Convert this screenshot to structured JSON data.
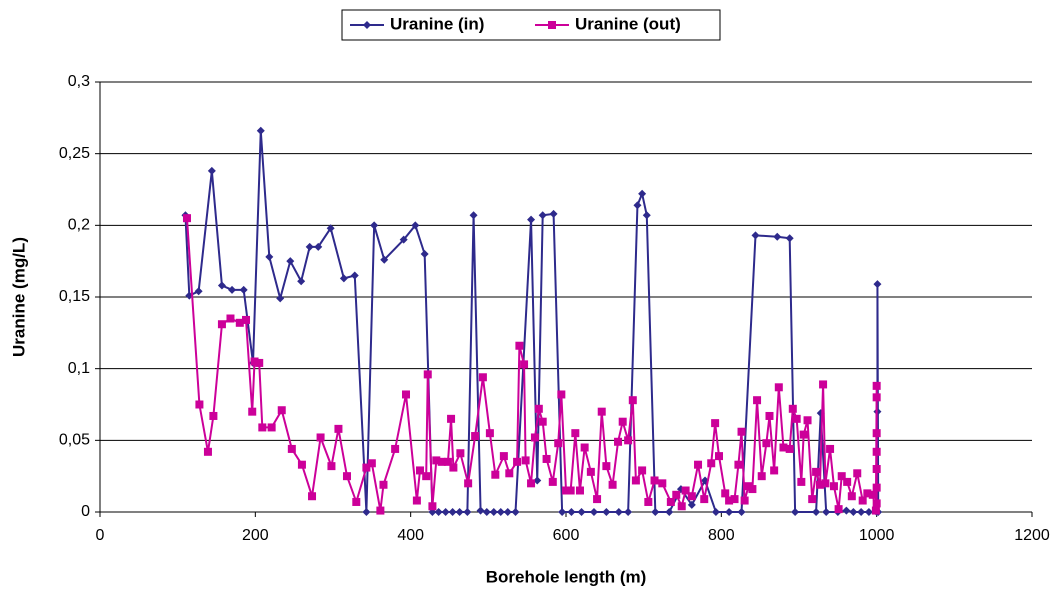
{
  "chart_data": {
    "type": "line",
    "x_label": "Borehole length (m)",
    "y_label": "Uranine (mg/L)",
    "xlim": [
      0,
      1200
    ],
    "xticks": [
      0,
      200,
      400,
      600,
      800,
      1000,
      1200
    ],
    "ylim": [
      0,
      0.3
    ],
    "yticks": [
      0,
      {
        "value": 0.05,
        "label": "0,05"
      },
      {
        "value": 0.1,
        "label": "0,1"
      },
      {
        "value": 0.15,
        "label": "0,15"
      },
      {
        "value": 0.2,
        "label": "0,2"
      },
      {
        "value": 0.25,
        "label": "0,25"
      },
      {
        "value": 0.3,
        "label": "0,3"
      }
    ],
    "grid": true,
    "legend": "top",
    "series": [
      {
        "name": "Uranine (in)",
        "color": "#2E2A8C",
        "marker": "diamond",
        "x": [
          110,
          115,
          127,
          144,
          157,
          170,
          185,
          197,
          207,
          218,
          232,
          245,
          259,
          270,
          281,
          297,
          314,
          328,
          343,
          353,
          366,
          391,
          406,
          418,
          428,
          436,
          445,
          454,
          463,
          473,
          481,
          490,
          498,
          507,
          516,
          525,
          535,
          555,
          563,
          570,
          584,
          595,
          607,
          620,
          636,
          652,
          668,
          680,
          692,
          698,
          704,
          715,
          733,
          748,
          762,
          779,
          793,
          810,
          826,
          844,
          872,
          888,
          895,
          922,
          928,
          935,
          950,
          961,
          970,
          980,
          990,
          1000,
          1001,
          1001,
          1002
        ],
        "values": [
          0.207,
          0.151,
          0.154,
          0.238,
          0.158,
          0.155,
          0.155,
          0.104,
          0.266,
          0.178,
          0.149,
          0.175,
          0.161,
          0.185,
          0.185,
          0.198,
          0.163,
          0.165,
          0,
          0.2,
          0.176,
          0.19,
          0.2,
          0.18,
          0,
          0,
          0,
          0,
          0,
          0,
          0.207,
          0.001,
          0,
          0,
          0,
          0,
          0,
          0.204,
          0.022,
          0.207,
          0.208,
          0,
          0,
          0,
          0,
          0,
          0,
          0,
          0.214,
          0.222,
          0.207,
          0,
          0,
          0.016,
          0.005,
          0.022,
          0,
          0,
          0,
          0.193,
          0.192,
          0.191,
          0,
          0,
          0.069,
          0,
          0,
          0.001,
          0,
          0,
          0,
          0,
          0.07,
          0.159,
          0
        ]
      },
      {
        "name": "Uranine (out)",
        "color": "#CC0099",
        "marker": "square",
        "x": [
          112,
          128,
          139,
          146,
          157,
          168,
          180,
          188,
          196,
          199,
          205,
          209,
          221,
          234,
          247,
          260,
          273,
          284,
          298,
          307,
          318,
          330,
          343,
          350,
          361,
          365,
          380,
          394,
          408,
          412,
          420,
          422,
          428,
          433,
          440,
          448,
          452,
          455,
          464,
          474,
          483,
          493,
          502,
          509,
          520,
          527,
          537,
          540,
          546,
          548,
          555,
          560,
          565,
          570,
          575,
          583,
          590,
          594,
          600,
          606,
          612,
          618,
          624,
          632,
          640,
          646,
          652,
          660,
          667,
          673,
          680,
          686,
          690,
          698,
          706,
          714,
          724,
          735,
          742,
          749,
          754,
          762,
          770,
          778,
          787,
          792,
          797,
          805,
          810,
          817,
          822,
          826,
          830,
          835,
          840,
          846,
          852,
          858,
          862,
          868,
          874,
          880,
          888,
          892,
          897,
          903,
          906,
          911,
          917,
          922,
          927,
          931,
          934,
          940,
          945,
          951,
          955,
          962,
          968,
          975,
          982,
          988,
          995,
          999,
          1000,
          1000,
          1000,
          1000,
          1000,
          1000,
          1000
        ],
        "values": [
          0.205,
          0.075,
          0.042,
          0.067,
          0.131,
          0.135,
          0.132,
          0.134,
          0.07,
          0.105,
          0.104,
          0.059,
          0.059,
          0.071,
          0.044,
          0.033,
          0.011,
          0.052,
          0.032,
          0.058,
          0.025,
          0.007,
          0.031,
          0.034,
          0.001,
          0.019,
          0.044,
          0.082,
          0.008,
          0.029,
          0.025,
          0.096,
          0.004,
          0.036,
          0.035,
          0.035,
          0.065,
          0.031,
          0.041,
          0.02,
          0.053,
          0.094,
          0.055,
          0.026,
          0.039,
          0.027,
          0.035,
          0.116,
          0.103,
          0.036,
          0.02,
          0.052,
          0.072,
          0.063,
          0.037,
          0.021,
          0.048,
          0.082,
          0.015,
          0.015,
          0.055,
          0.015,
          0.045,
          0.028,
          0.009,
          0.07,
          0.032,
          0.019,
          0.049,
          0.063,
          0.05,
          0.078,
          0.022,
          0.029,
          0.007,
          0.022,
          0.02,
          0.007,
          0.012,
          0.004,
          0.015,
          0.011,
          0.033,
          0.009,
          0.034,
          0.062,
          0.039,
          0.013,
          0.008,
          0.009,
          0.033,
          0.056,
          0.008,
          0.018,
          0.016,
          0.078,
          0.025,
          0.048,
          0.067,
          0.029,
          0.087,
          0.045,
          0.044,
          0.072,
          0.065,
          0.021,
          0.054,
          0.064,
          0.009,
          0.028,
          0.019,
          0.089,
          0.02,
          0.044,
          0.018,
          0.002,
          0.025,
          0.021,
          0.011,
          0.027,
          0.008,
          0.013,
          0.012,
          0.001,
          0.088,
          0.08,
          0.055,
          0.042,
          0.03,
          0.017,
          0.006
        ]
      }
    ]
  }
}
